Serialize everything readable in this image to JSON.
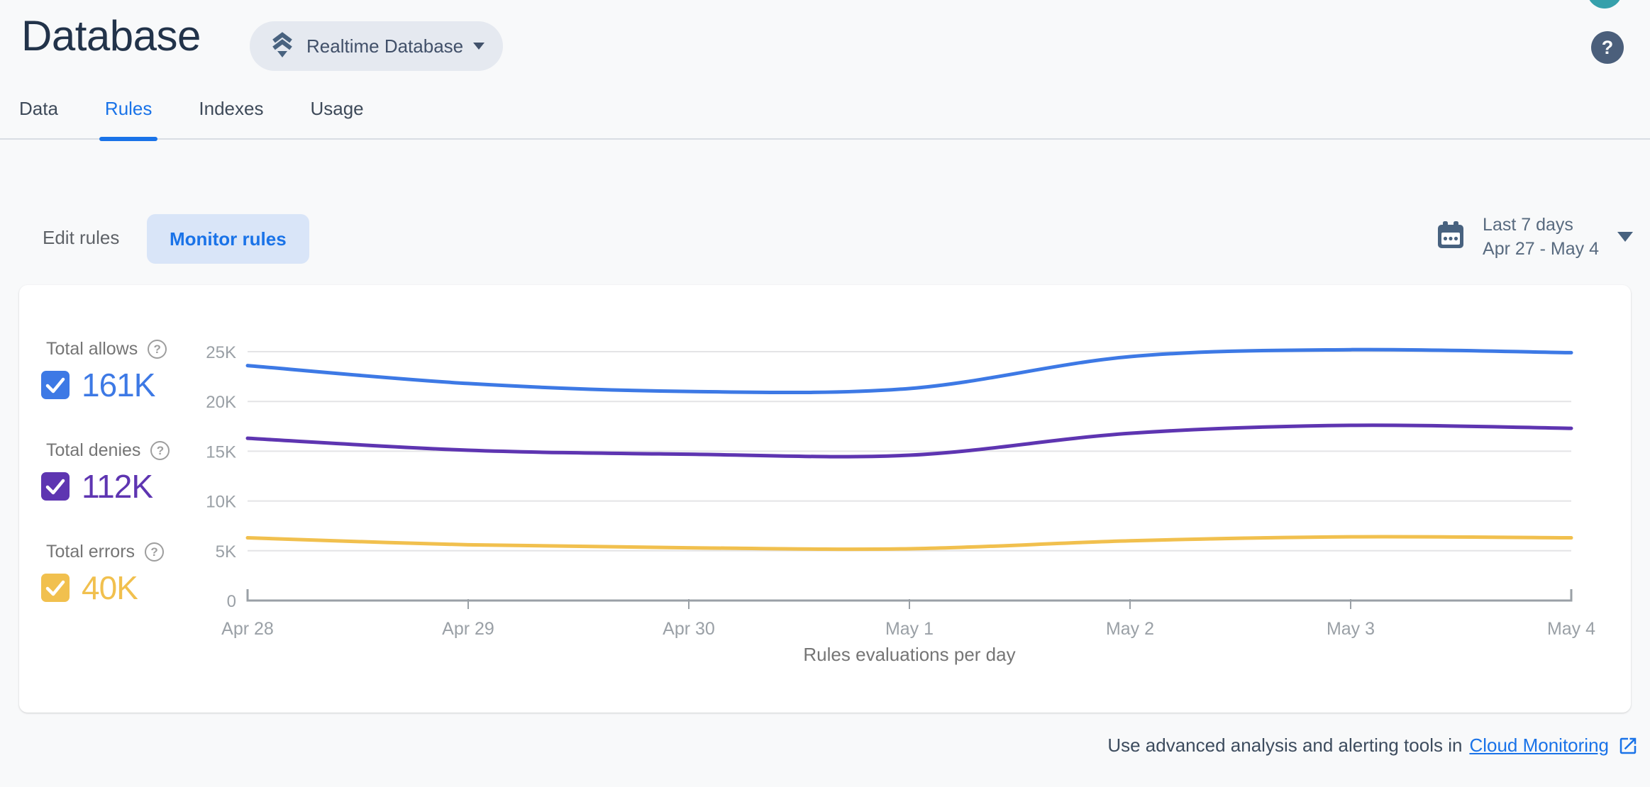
{
  "header": {
    "title": "Database",
    "product_selector": "Realtime Database",
    "help_glyph": "?"
  },
  "tabs": [
    {
      "label": "Data",
      "active": false
    },
    {
      "label": "Rules",
      "active": true
    },
    {
      "label": "Indexes",
      "active": false
    },
    {
      "label": "Usage",
      "active": false
    }
  ],
  "toolbar": {
    "edit_rules_label": "Edit rules",
    "monitor_rules_label": "Monitor rules",
    "date_range": {
      "preset": "Last 7 days",
      "range": "Apr 27 - May 4"
    }
  },
  "metrics": [
    {
      "label": "Total allows",
      "value": "161K",
      "checked": true,
      "color": "#3d79e5"
    },
    {
      "label": "Total denies",
      "value": "112K",
      "checked": true,
      "color": "#5e35b1"
    },
    {
      "label": "Total errors",
      "value": "40K",
      "checked": true,
      "color": "#f1c04e"
    }
  ],
  "chart_data": {
    "type": "line",
    "title": "Rules evaluations per day",
    "x": [
      "Apr 28",
      "Apr 29",
      "Apr 30",
      "May 1",
      "May 2",
      "May 3",
      "May 4"
    ],
    "series": [
      {
        "name": "Total allows",
        "color": "#3d79e5",
        "values": [
          23600,
          21800,
          21000,
          21300,
          24500,
          25200,
          24900
        ]
      },
      {
        "name": "Total denies",
        "color": "#5e35b1",
        "values": [
          16300,
          15100,
          14700,
          14600,
          16800,
          17600,
          17300
        ]
      },
      {
        "name": "Total errors",
        "color": "#f1c04e",
        "values": [
          6300,
          5600,
          5300,
          5200,
          6000,
          6400,
          6300
        ]
      }
    ],
    "ylim": [
      0,
      25000
    ],
    "yticks": [
      {
        "value": 0,
        "label": "0"
      },
      {
        "value": 5000,
        "label": "5K"
      },
      {
        "value": 10000,
        "label": "10K"
      },
      {
        "value": 15000,
        "label": "15K"
      },
      {
        "value": 20000,
        "label": "20K"
      },
      {
        "value": 25000,
        "label": "25K"
      }
    ],
    "grid": true,
    "legend_position": "left"
  },
  "footer": {
    "text": "Use advanced analysis and alerting tools in",
    "link_label": "Cloud Monitoring"
  }
}
